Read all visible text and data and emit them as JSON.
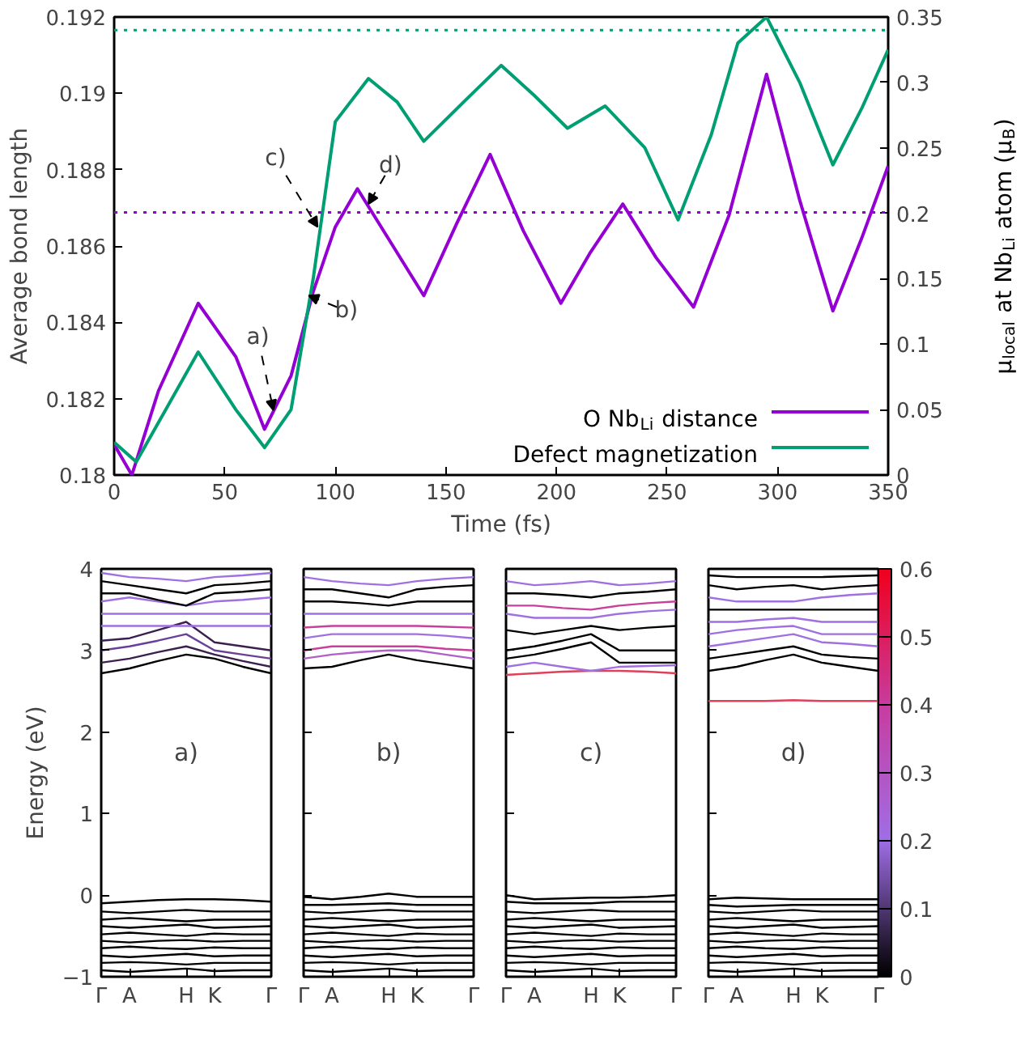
{
  "chart_data": [
    {
      "type": "line",
      "xlabel": "Time (fs)",
      "ylabel": "Average bond length",
      "y2label": "μ$_{local}$ at Nb$_{Li}$ atom (μ$_{B}$)",
      "xlim": [
        0,
        350
      ],
      "xticks": [
        0,
        50,
        100,
        150,
        200,
        250,
        300,
        350
      ],
      "ylim": [
        0.18,
        0.192
      ],
      "yticks": [
        0.18,
        0.182,
        0.184,
        0.186,
        0.188,
        0.19,
        0.192
      ],
      "y2lim": [
        0,
        0.35
      ],
      "y2ticks": [
        0,
        0.05,
        0.1,
        0.15,
        0.2,
        0.25,
        0.3,
        0.35
      ],
      "legend": "bottom right",
      "grid": false,
      "series": [
        {
          "name": "O Nb$_{Li}$ distance",
          "color": "#9400d3",
          "x": [
            0,
            8,
            20,
            38,
            55,
            68,
            80,
            90,
            100,
            110,
            125,
            140,
            155,
            170,
            185,
            202,
            215,
            230,
            245,
            262,
            278,
            295,
            310,
            325,
            338,
            350
          ],
          "values": [
            0.1808,
            0.18,
            0.1822,
            0.1845,
            0.1831,
            0.1812,
            0.1826,
            0.1848,
            0.1865,
            0.1875,
            0.1861,
            0.1847,
            0.1866,
            0.1884,
            0.1864,
            0.1845,
            0.1858,
            0.1871,
            0.1857,
            0.1844,
            0.1868,
            0.1905,
            0.1872,
            0.1843,
            0.1862,
            0.1881
          ]
        },
        {
          "name": "Defect magnetization",
          "color": "#009e73",
          "axis": "y2",
          "x": [
            0,
            10,
            20,
            38,
            55,
            68,
            80,
            90,
            100,
            115,
            128,
            140,
            158,
            175,
            190,
            205,
            222,
            240,
            255,
            270,
            282,
            295,
            310,
            325,
            338,
            350
          ],
          "values": [
            0.025,
            0.01,
            0.04,
            0.094,
            0.05,
            0.021,
            0.05,
            0.15,
            0.27,
            0.303,
            0.285,
            0.255,
            0.285,
            0.313,
            0.29,
            0.265,
            0.282,
            0.25,
            0.195,
            0.26,
            0.33,
            0.35,
            0.3,
            0.237,
            0.28,
            0.325
          ]
        }
      ],
      "ref_lines": [
        {
          "axis": "y",
          "value": 0.18688,
          "color": "#9400d3",
          "line_style": "dotted"
        },
        {
          "axis": "y2",
          "value": 0.34,
          "color": "#009e73",
          "line_style": "dotted"
        }
      ],
      "annotations": [
        {
          "text": "a)",
          "x": 72,
          "y": 0.1817
        },
        {
          "text": "b)",
          "x": 88,
          "y": 0.1847
        },
        {
          "text": "c)",
          "x": 92,
          "y": 0.1865
        },
        {
          "text": "d)",
          "x": 115,
          "y": 0.1871
        }
      ]
    },
    {
      "type": "line",
      "ylabel": "Energy (eV)",
      "categories": [
        "Γ",
        "A",
        null,
        "H",
        "K",
        null,
        "Γ"
      ],
      "ylim": [
        -1,
        4
      ],
      "yticks": [
        -1,
        0,
        1,
        2,
        3,
        4
      ],
      "annotations": [
        "a)"
      ],
      "series": [
        {
          "color": "#000000",
          "values": [
            2.72,
            2.78,
            2.87,
            2.95,
            2.9,
            2.8,
            2.72
          ]
        },
        {
          "color": "#3a1f4f",
          "values": [
            2.85,
            2.9,
            2.98,
            3.05,
            2.95,
            2.87,
            2.8
          ]
        },
        {
          "color": "#6a3f9a",
          "values": [
            3.0,
            3.05,
            3.12,
            3.2,
            3.0,
            2.95,
            2.9
          ]
        },
        {
          "color": "#3a1f4f",
          "values": [
            3.12,
            3.15,
            3.25,
            3.35,
            3.1,
            3.05,
            3.0
          ]
        },
        {
          "color": "#a070e0",
          "values": [
            3.3,
            3.3,
            3.3,
            3.3,
            3.3,
            3.3,
            3.3
          ]
        },
        {
          "color": "#a070e0",
          "values": [
            3.45,
            3.45,
            3.45,
            3.45,
            3.45,
            3.45,
            3.45
          ]
        },
        {
          "color": "#a070e0",
          "values": [
            3.6,
            3.65,
            3.6,
            3.55,
            3.6,
            3.62,
            3.65
          ]
        },
        {
          "color": "#000000",
          "values": [
            3.7,
            3.7,
            3.62,
            3.55,
            3.7,
            3.72,
            3.75
          ]
        },
        {
          "color": "#000000",
          "values": [
            3.85,
            3.8,
            3.75,
            3.7,
            3.8,
            3.82,
            3.85
          ]
        },
        {
          "color": "#a070e0",
          "values": [
            3.95,
            3.9,
            3.88,
            3.85,
            3.9,
            3.92,
            3.95
          ]
        },
        {
          "color": "#000000",
          "values": [
            -0.1,
            -0.08,
            -0.06,
            -0.05,
            -0.05,
            -0.06,
            -0.08
          ]
        },
        {
          "color": "#000000",
          "values": [
            -0.2,
            -0.22,
            -0.2,
            -0.18,
            -0.2,
            -0.2,
            -0.2
          ]
        },
        {
          "color": "#000000",
          "values": [
            -0.3,
            -0.28,
            -0.3,
            -0.32,
            -0.3,
            -0.3,
            -0.3
          ]
        },
        {
          "color": "#000000",
          "values": [
            -0.38,
            -0.4,
            -0.38,
            -0.36,
            -0.4,
            -0.39,
            -0.38
          ]
        },
        {
          "color": "#000000",
          "values": [
            -0.48,
            -0.46,
            -0.48,
            -0.5,
            -0.47,
            -0.48,
            -0.48
          ]
        },
        {
          "color": "#000000",
          "values": [
            -0.56,
            -0.58,
            -0.56,
            -0.55,
            -0.57,
            -0.56,
            -0.56
          ]
        },
        {
          "color": "#000000",
          "values": [
            -0.65,
            -0.63,
            -0.65,
            -0.66,
            -0.64,
            -0.65,
            -0.65
          ]
        },
        {
          "color": "#000000",
          "values": [
            -0.74,
            -0.76,
            -0.74,
            -0.72,
            -0.75,
            -0.74,
            -0.74
          ]
        },
        {
          "color": "#000000",
          "values": [
            -0.83,
            -0.82,
            -0.83,
            -0.85,
            -0.83,
            -0.83,
            -0.83
          ]
        },
        {
          "color": "#000000",
          "values": [
            -0.92,
            -0.94,
            -0.92,
            -0.9,
            -0.93,
            -0.92,
            -0.92
          ]
        }
      ]
    },
    {
      "type": "line",
      "categories": [
        "Γ",
        "A",
        null,
        "H",
        "K",
        null,
        "Γ"
      ],
      "ylim": [
        -1,
        4
      ],
      "yticks": [
        -1,
        0,
        1,
        2,
        3,
        4
      ],
      "tick_labels": "x",
      "annotations": [
        "b)"
      ],
      "series": [
        {
          "color": "#000000",
          "values": [
            2.78,
            2.8,
            2.88,
            2.95,
            2.88,
            2.83,
            2.78
          ]
        },
        {
          "color": "#b060c8",
          "values": [
            2.9,
            2.95,
            2.98,
            3.0,
            3.0,
            2.95,
            2.9
          ]
        },
        {
          "color": "#c8409a",
          "values": [
            3.0,
            3.05,
            3.05,
            3.05,
            3.05,
            3.02,
            3.0
          ]
        },
        {
          "color": "#a070e0",
          "values": [
            3.15,
            3.2,
            3.2,
            3.2,
            3.2,
            3.18,
            3.15
          ]
        },
        {
          "color": "#c8409a",
          "values": [
            3.28,
            3.3,
            3.3,
            3.3,
            3.3,
            3.29,
            3.28
          ]
        },
        {
          "color": "#a070e0",
          "values": [
            3.45,
            3.45,
            3.45,
            3.45,
            3.45,
            3.45,
            3.45
          ]
        },
        {
          "color": "#000000",
          "values": [
            3.6,
            3.6,
            3.58,
            3.55,
            3.6,
            3.6,
            3.6
          ]
        },
        {
          "color": "#000000",
          "values": [
            3.75,
            3.75,
            3.7,
            3.65,
            3.75,
            3.78,
            3.8
          ]
        },
        {
          "color": "#a070e0",
          "values": [
            3.9,
            3.85,
            3.82,
            3.8,
            3.85,
            3.88,
            3.9
          ]
        },
        {
          "color": "#000000",
          "values": [
            -0.02,
            -0.05,
            -0.02,
            0.02,
            -0.02,
            -0.02,
            -0.02
          ]
        },
        {
          "color": "#000000",
          "values": [
            -0.12,
            -0.12,
            -0.11,
            -0.1,
            -0.12,
            -0.12,
            -0.12
          ]
        },
        {
          "color": "#000000",
          "values": [
            -0.2,
            -0.22,
            -0.2,
            -0.18,
            -0.2,
            -0.2,
            -0.2
          ]
        },
        {
          "color": "#000000",
          "values": [
            -0.3,
            -0.28,
            -0.3,
            -0.32,
            -0.3,
            -0.3,
            -0.3
          ]
        },
        {
          "color": "#000000",
          "values": [
            -0.38,
            -0.4,
            -0.38,
            -0.36,
            -0.4,
            -0.39,
            -0.38
          ]
        },
        {
          "color": "#000000",
          "values": [
            -0.48,
            -0.46,
            -0.48,
            -0.5,
            -0.47,
            -0.48,
            -0.48
          ]
        },
        {
          "color": "#000000",
          "values": [
            -0.56,
            -0.58,
            -0.56,
            -0.55,
            -0.57,
            -0.56,
            -0.56
          ]
        },
        {
          "color": "#000000",
          "values": [
            -0.65,
            -0.63,
            -0.65,
            -0.66,
            -0.64,
            -0.65,
            -0.65
          ]
        },
        {
          "color": "#000000",
          "values": [
            -0.74,
            -0.76,
            -0.74,
            -0.72,
            -0.75,
            -0.74,
            -0.74
          ]
        },
        {
          "color": "#000000",
          "values": [
            -0.83,
            -0.82,
            -0.83,
            -0.85,
            -0.83,
            -0.83,
            -0.83
          ]
        },
        {
          "color": "#000000",
          "values": [
            -0.92,
            -0.94,
            -0.92,
            -0.9,
            -0.93,
            -0.92,
            -0.92
          ]
        }
      ]
    },
    {
      "type": "line",
      "categories": [
        "Γ",
        "A",
        null,
        "H",
        "K",
        null,
        "Γ"
      ],
      "ylim": [
        -1,
        4
      ],
      "yticks": [
        -1,
        0,
        1,
        2,
        3,
        4
      ],
      "tick_labels": "x",
      "annotations": [
        "c)"
      ],
      "series": [
        {
          "color": "#e0405a",
          "values": [
            2.7,
            2.72,
            2.74,
            2.75,
            2.75,
            2.74,
            2.72
          ]
        },
        {
          "color": "#a070e0",
          "values": [
            2.8,
            2.85,
            2.8,
            2.75,
            2.8,
            2.81,
            2.82
          ]
        },
        {
          "color": "#000000",
          "values": [
            2.9,
            2.95,
            3.02,
            3.1,
            2.85,
            2.85,
            2.85
          ]
        },
        {
          "color": "#000000",
          "values": [
            3.0,
            3.05,
            3.12,
            3.2,
            3.0,
            3.0,
            3.0
          ]
        },
        {
          "color": "#000000",
          "values": [
            3.25,
            3.2,
            3.25,
            3.3,
            3.25,
            3.28,
            3.3
          ]
        },
        {
          "color": "#a070e0",
          "values": [
            3.45,
            3.4,
            3.4,
            3.4,
            3.45,
            3.48,
            3.5
          ]
        },
        {
          "color": "#c8409a",
          "values": [
            3.55,
            3.55,
            3.52,
            3.5,
            3.55,
            3.58,
            3.6
          ]
        },
        {
          "color": "#000000",
          "values": [
            3.7,
            3.7,
            3.68,
            3.65,
            3.7,
            3.72,
            3.75
          ]
        },
        {
          "color": "#a070e0",
          "values": [
            3.85,
            3.8,
            3.82,
            3.85,
            3.8,
            3.82,
            3.85
          ]
        },
        {
          "color": "#000000",
          "values": [
            0.0,
            -0.05,
            -0.04,
            -0.03,
            -0.03,
            -0.02,
            0.0
          ]
        },
        {
          "color": "#000000",
          "values": [
            -0.08,
            -0.1,
            -0.1,
            -0.1,
            -0.08,
            -0.08,
            -0.08
          ]
        },
        {
          "color": "#000000",
          "values": [
            -0.2,
            -0.22,
            -0.2,
            -0.18,
            -0.2,
            -0.2,
            -0.2
          ]
        },
        {
          "color": "#000000",
          "values": [
            -0.3,
            -0.28,
            -0.3,
            -0.32,
            -0.3,
            -0.3,
            -0.3
          ]
        },
        {
          "color": "#000000",
          "values": [
            -0.38,
            -0.4,
            -0.38,
            -0.36,
            -0.4,
            -0.39,
            -0.38
          ]
        },
        {
          "color": "#000000",
          "values": [
            -0.48,
            -0.46,
            -0.48,
            -0.5,
            -0.47,
            -0.48,
            -0.48
          ]
        },
        {
          "color": "#000000",
          "values": [
            -0.56,
            -0.58,
            -0.56,
            -0.55,
            -0.57,
            -0.56,
            -0.56
          ]
        },
        {
          "color": "#000000",
          "values": [
            -0.65,
            -0.63,
            -0.65,
            -0.66,
            -0.64,
            -0.65,
            -0.65
          ]
        },
        {
          "color": "#000000",
          "values": [
            -0.74,
            -0.76,
            -0.74,
            -0.72,
            -0.75,
            -0.74,
            -0.74
          ]
        },
        {
          "color": "#000000",
          "values": [
            -0.83,
            -0.82,
            -0.83,
            -0.85,
            -0.83,
            -0.83,
            -0.83
          ]
        },
        {
          "color": "#000000",
          "values": [
            -0.92,
            -0.94,
            -0.92,
            -0.9,
            -0.93,
            -0.92,
            -0.92
          ]
        }
      ]
    },
    {
      "type": "line",
      "categories": [
        "Γ",
        "A",
        null,
        "H",
        "K",
        null,
        "Γ"
      ],
      "ylim": [
        -1,
        4
      ],
      "yticks": [
        -1,
        0,
        1,
        2,
        3,
        4
      ],
      "tick_labels": "x",
      "annotations": [
        "d)"
      ],
      "clim": [
        0,
        0.6
      ],
      "cticks": [
        0,
        0.1,
        0.2,
        0.3,
        0.4,
        0.5,
        0.6
      ],
      "series": [
        {
          "color": "#e0405a",
          "values": [
            2.38,
            2.38,
            2.38,
            2.39,
            2.38,
            2.38,
            2.38
          ]
        },
        {
          "color": "#000000",
          "values": [
            2.75,
            2.8,
            2.88,
            2.95,
            2.85,
            2.8,
            2.75
          ]
        },
        {
          "color": "#000000",
          "values": [
            2.9,
            2.95,
            3.0,
            3.05,
            2.95,
            2.92,
            2.9
          ]
        },
        {
          "color": "#a070e0",
          "values": [
            3.05,
            3.1,
            3.15,
            3.2,
            3.1,
            3.08,
            3.05
          ]
        },
        {
          "color": "#a070e0",
          "values": [
            3.2,
            3.25,
            3.28,
            3.3,
            3.2,
            3.2,
            3.2
          ]
        },
        {
          "color": "#a070e0",
          "values": [
            3.35,
            3.35,
            3.38,
            3.4,
            3.35,
            3.35,
            3.35
          ]
        },
        {
          "color": "#000000",
          "values": [
            3.5,
            3.5,
            3.5,
            3.5,
            3.5,
            3.5,
            3.5
          ]
        },
        {
          "color": "#a070e0",
          "values": [
            3.65,
            3.6,
            3.6,
            3.6,
            3.65,
            3.68,
            3.7
          ]
        },
        {
          "color": "#000000",
          "values": [
            3.8,
            3.75,
            3.78,
            3.8,
            3.75,
            3.78,
            3.8
          ]
        },
        {
          "color": "#000000",
          "values": [
            3.92,
            3.9,
            3.9,
            3.9,
            3.9,
            3.91,
            3.92
          ]
        },
        {
          "color": "#000000",
          "values": [
            -0.05,
            -0.03,
            -0.04,
            -0.05,
            -0.05,
            -0.05,
            -0.05
          ]
        },
        {
          "color": "#000000",
          "values": [
            -0.12,
            -0.14,
            -0.13,
            -0.12,
            -0.12,
            -0.12,
            -0.12
          ]
        },
        {
          "color": "#000000",
          "values": [
            -0.2,
            -0.22,
            -0.2,
            -0.18,
            -0.2,
            -0.2,
            -0.2
          ]
        },
        {
          "color": "#000000",
          "values": [
            -0.3,
            -0.28,
            -0.3,
            -0.32,
            -0.3,
            -0.3,
            -0.3
          ]
        },
        {
          "color": "#000000",
          "values": [
            -0.38,
            -0.4,
            -0.38,
            -0.36,
            -0.4,
            -0.39,
            -0.38
          ]
        },
        {
          "color": "#000000",
          "values": [
            -0.48,
            -0.46,
            -0.48,
            -0.5,
            -0.47,
            -0.48,
            -0.48
          ]
        },
        {
          "color": "#000000",
          "values": [
            -0.56,
            -0.58,
            -0.56,
            -0.55,
            -0.57,
            -0.56,
            -0.56
          ]
        },
        {
          "color": "#000000",
          "values": [
            -0.65,
            -0.63,
            -0.65,
            -0.66,
            -0.64,
            -0.65,
            -0.65
          ]
        },
        {
          "color": "#000000",
          "values": [
            -0.74,
            -0.76,
            -0.74,
            -0.72,
            -0.75,
            -0.74,
            -0.74
          ]
        },
        {
          "color": "#000000",
          "values": [
            -0.83,
            -0.82,
            -0.83,
            -0.85,
            -0.83,
            -0.83,
            -0.83
          ]
        },
        {
          "color": "#000000",
          "values": [
            -0.92,
            -0.94,
            -0.92,
            -0.9,
            -0.93,
            -0.92,
            -0.92
          ]
        }
      ]
    }
  ]
}
